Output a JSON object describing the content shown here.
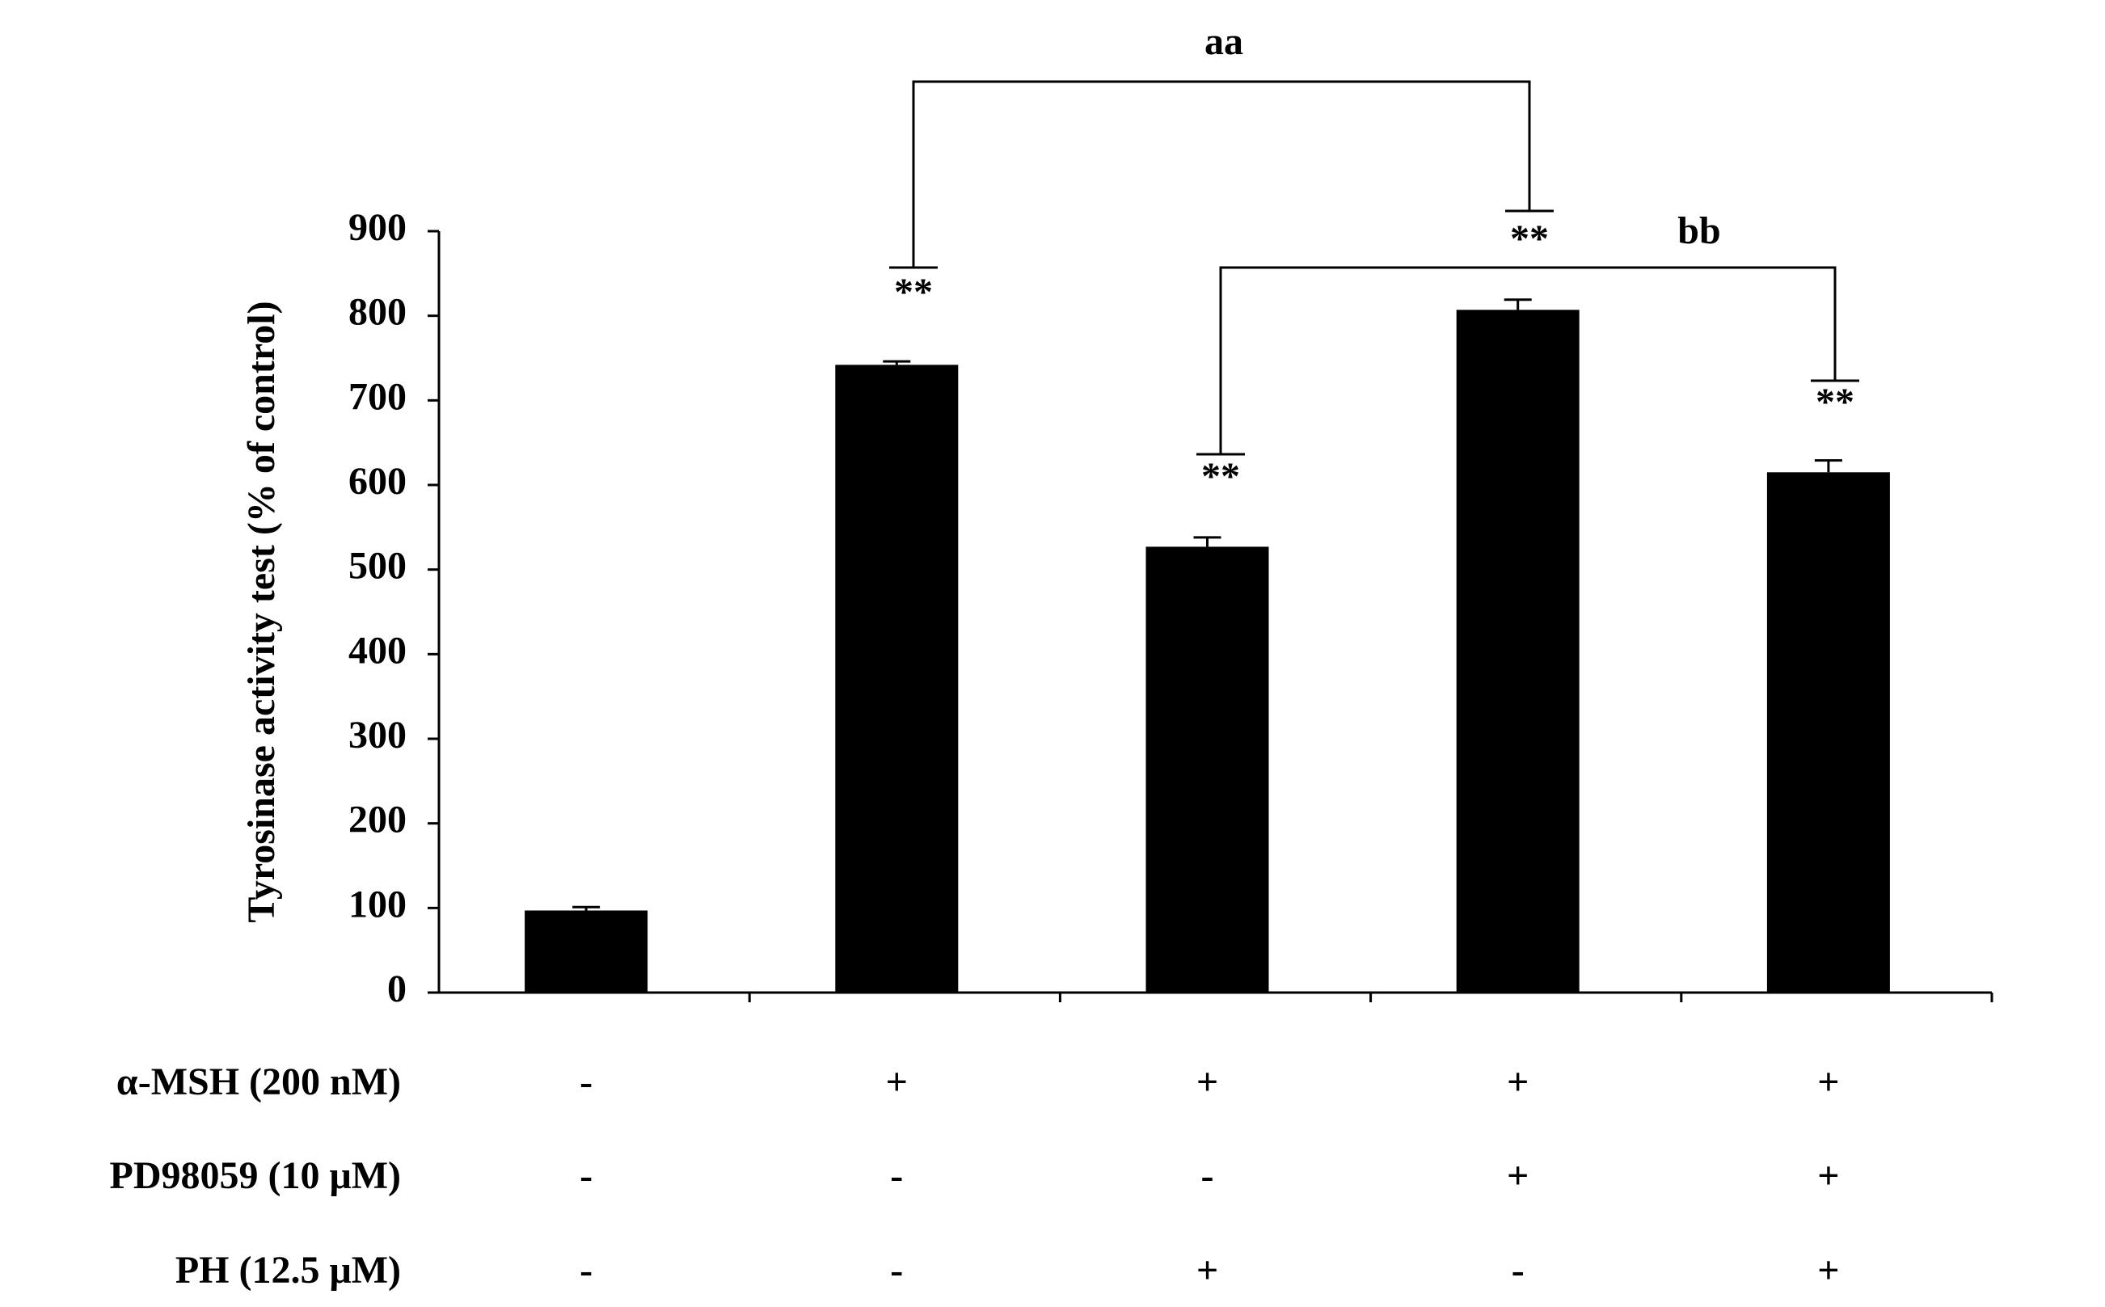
{
  "chart_data": {
    "type": "bar",
    "y_label": "Tyrosinase activity test (% of control)",
    "categories": [
      null,
      null,
      null,
      null,
      null
    ],
    "values": [
      97,
      742,
      527,
      807,
      615
    ],
    "errors": [
      4,
      4,
      11,
      12,
      14
    ],
    "color": "#000000",
    "ylim": [
      0,
      900
    ],
    "yticks": [
      0,
      100,
      200,
      300,
      400,
      500,
      600,
      700,
      800,
      900
    ],
    "annotations": [
      "**",
      "**",
      "**",
      "**"
    ],
    "brackets": [
      "aa",
      "bb"
    ],
    "conditions": [
      {
        "label": "α-MSH (200 nM)",
        "signs": [
          "-",
          "+",
          "+",
          "+",
          "+"
        ]
      },
      {
        "label": "PD98059 (10 μM)",
        "signs": [
          "-",
          "-",
          "-",
          "+",
          "+"
        ]
      },
      {
        "label": "PH (12.5 μM)",
        "signs": [
          "-",
          "-",
          "+",
          "-",
          "+"
        ]
      }
    ]
  }
}
